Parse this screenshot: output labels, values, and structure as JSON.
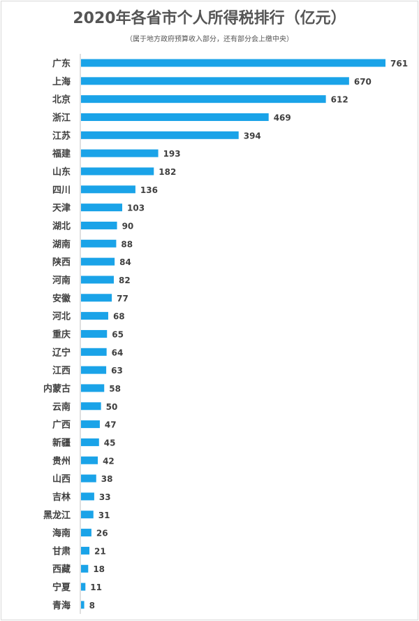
{
  "chart_data": {
    "type": "bar",
    "orientation": "horizontal",
    "title": "2020年各省市个人所得税排行（亿元）",
    "subtitle": "（属于地方政府预算收入部分，还有部分会上缴中央）",
    "categories": [
      "广东",
      "上海",
      "北京",
      "浙江",
      "江苏",
      "福建",
      "山东",
      "四川",
      "天津",
      "湖北",
      "湖南",
      "陕西",
      "河南",
      "安徽",
      "河北",
      "重庆",
      "辽宁",
      "江西",
      "内蒙古",
      "云南",
      "广西",
      "新疆",
      "贵州",
      "山西",
      "吉林",
      "黑龙江",
      "海南",
      "甘肃",
      "西藏",
      "宁夏",
      "青海"
    ],
    "values": [
      761,
      670,
      612,
      469,
      394,
      193,
      182,
      136,
      103,
      90,
      88,
      84,
      82,
      77,
      68,
      65,
      64,
      63,
      58,
      50,
      47,
      45,
      42,
      38,
      33,
      31,
      26,
      21,
      18,
      11,
      8
    ],
    "bar_color": "#1aa3e8",
    "grid": false,
    "legend": "none",
    "xlim": [
      0,
      761
    ]
  }
}
